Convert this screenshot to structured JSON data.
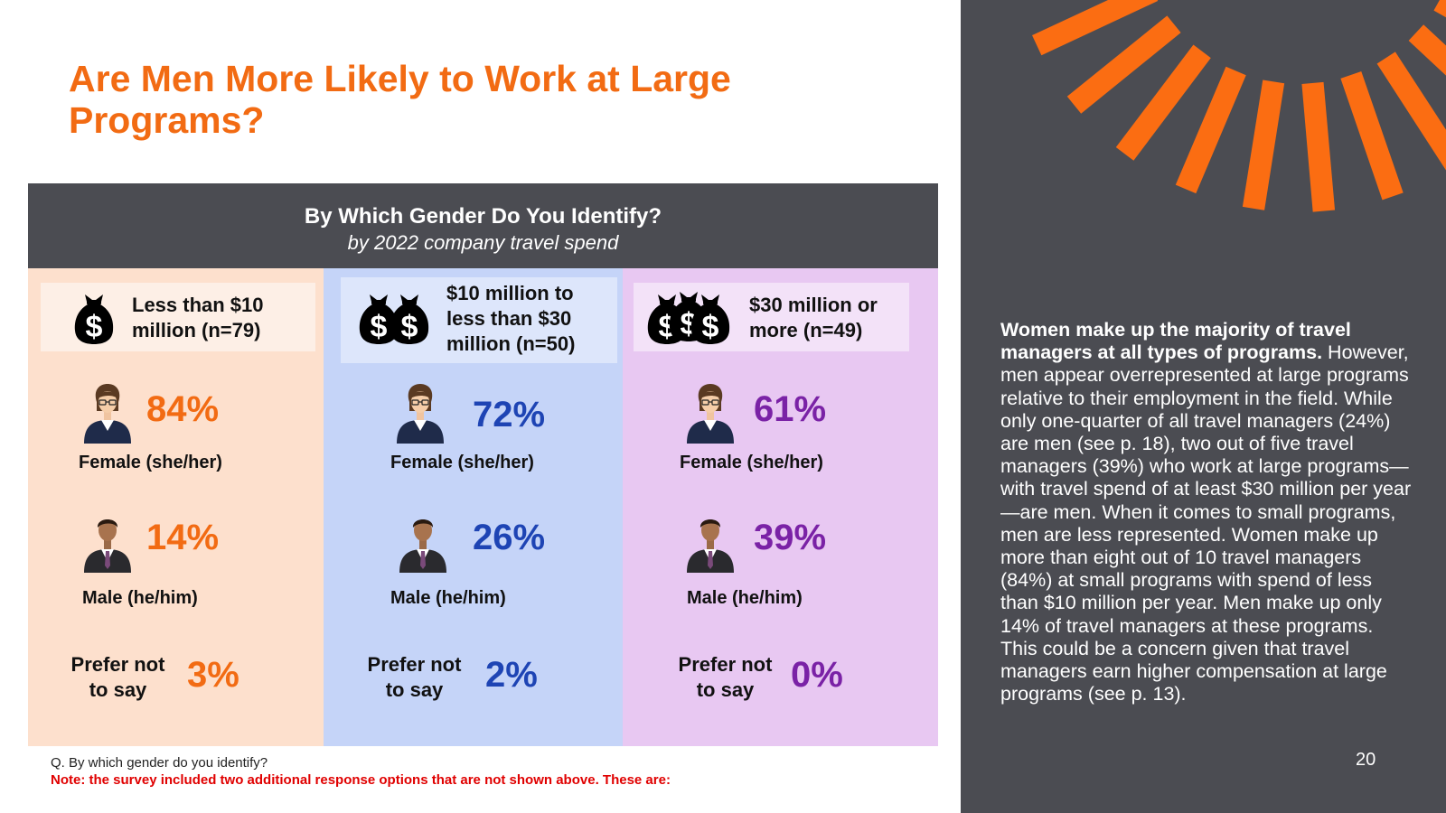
{
  "colors": {
    "title_orange": "#f26b13",
    "header_gray": "#4b4c52",
    "col1_bg": "#fde0cd",
    "col1_box": "#fdefe6",
    "col1_accent": "#f26b13",
    "col2_bg": "#c5d4f8",
    "col2_box": "#dde6fb",
    "col2_accent": "#1e44b4",
    "col3_bg": "#e8c8f2",
    "col3_box": "#f3e2f8",
    "col3_accent": "#7a22a6",
    "sunburst_orange": "#fb6d12"
  },
  "title": "Are Men More Likely to Work at Large Programs?",
  "infographic": {
    "title": "By Which Gender Do You Identify?",
    "subtitle": "by 2022 company travel spend",
    "columns": [
      {
        "icon": "money-bag-icon",
        "label": "Less than $10 million (n=79)",
        "female_pct": "84%",
        "female_label": "Female (she/her)",
        "male_pct": "14%",
        "male_label": "Male (he/him)",
        "prefer_label": "Prefer not to say",
        "prefer_pct": "3%"
      },
      {
        "icon": "two-money-bags-icon",
        "label": "$10 million to less than $30 million (n=50)",
        "female_pct": "72%",
        "female_label": "Female (she/her)",
        "male_pct": "26%",
        "male_label": "Male (he/him)",
        "prefer_label": "Prefer not to say",
        "prefer_pct": "2%"
      },
      {
        "icon": "three-money-bags-icon",
        "label": "$30 million or more (n=49)",
        "female_pct": "61%",
        "female_label": "Female (she/her)",
        "male_pct": "39%",
        "male_label": "Male (he/him)",
        "prefer_label": "Prefer not to say",
        "prefer_pct": "0%"
      }
    ]
  },
  "footnote": "Q. By which gender do you identify?",
  "note": "Note: the survey included two additional response options that are not shown above. These are:",
  "side": {
    "lead": "Women make up the majority of travel managers at all types of programs.",
    "body": " However, men appear overrepresented at large programs relative to their employment in the field. While only one-quarter of all travel managers (24%) are men (see p. 18), two out of five travel managers (39%) who work at large programs—with travel spend of at least $30 million per year—are men. When it comes to small programs, men are less represented. Women make up more than eight out of 10 travel managers (84%) at small programs with spend of less than $10 million per year. Men make up only 14% of travel managers at these programs. This could be a concern given that travel managers earn higher compensation at large programs (see p. 13).",
    "page_number": "20"
  }
}
